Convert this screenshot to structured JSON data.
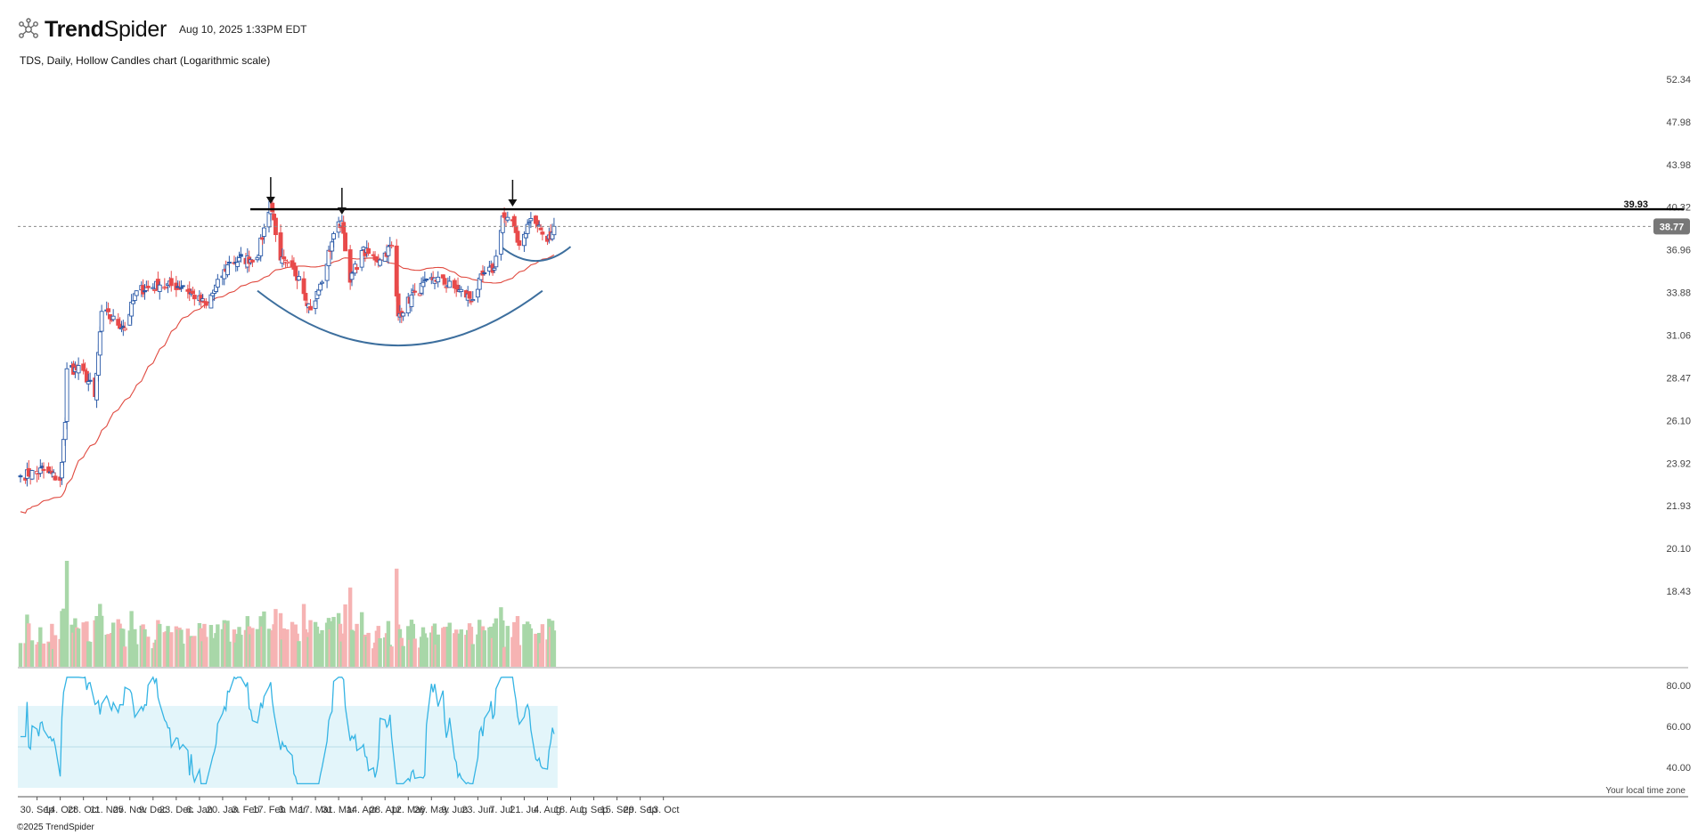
{
  "header": {
    "brand_light": "Trend",
    "brand_bold": "Spider",
    "timestamp": "Aug 10, 2025 1:33PM EDT",
    "subtitle": "TDS, Daily, Hollow Candles chart (Logarithmic scale)"
  },
  "footer": {
    "copyright": "©2025 TrendSpider",
    "timezone_note": "Your local time zone"
  },
  "colors": {
    "up": "#2b5aa8",
    "down": "#e84a4a",
    "sma": "#e0493f",
    "arc": "#3d6f9e",
    "resistance": "#000000",
    "rsi_line": "#35b4e4",
    "rsi_band": "#e3f5fa",
    "vol_up": "#a8d7a8",
    "vol_down": "#f6b3b3"
  },
  "chart_data": {
    "type": "candlestick",
    "symbol": "TDS",
    "interval": "Daily",
    "scale": "log",
    "price_axis_ticks": [
      "52.34",
      "47.98",
      "43.98",
      "40.32",
      "36.96",
      "33.88",
      "31.06",
      "28.47",
      "26.10",
      "23.92",
      "21.93",
      "20.10",
      "18.43"
    ],
    "resistance_level": "39.93",
    "last_price": "38.77",
    "x_axis_labels": [
      "30. Sep",
      "14. Oct",
      "28. Oct",
      "11. Nov",
      "25. Nov",
      "9. Dec",
      "23. Dec",
      "6. Jan",
      "20. Jan",
      "3. Feb",
      "17. Feb",
      "3. Mar",
      "17. Mar",
      "31. Mar",
      "14. Apr",
      "28. Apr",
      "12. May",
      "26. May",
      "9. Jun",
      "23. Jun",
      "7. Jul",
      "21. Jul",
      "4. Aug",
      "18. Aug",
      "1. Sep",
      "15. Sep",
      "29. Sep",
      "13. Oct"
    ],
    "close_anchors": [
      {
        "date": "2024-09-20",
        "close": 23.3
      },
      {
        "date": "2024-10-04",
        "close": 23.6
      },
      {
        "date": "2024-10-14",
        "close": 23.1
      },
      {
        "date": "2024-10-17",
        "close": 26.0
      },
      {
        "date": "2024-10-18",
        "close": 29.0
      },
      {
        "date": "2024-10-28",
        "close": 28.9
      },
      {
        "date": "2024-11-04",
        "close": 27.4
      },
      {
        "date": "2024-11-08",
        "close": 32.6
      },
      {
        "date": "2024-11-22",
        "close": 31.5
      },
      {
        "date": "2024-11-29",
        "close": 34.0
      },
      {
        "date": "2024-12-13",
        "close": 34.4
      },
      {
        "date": "2024-12-27",
        "close": 34.3
      },
      {
        "date": "2025-01-10",
        "close": 33.0
      },
      {
        "date": "2025-01-24",
        "close": 36.0
      },
      {
        "date": "2025-02-10",
        "close": 36.4
      },
      {
        "date": "2025-02-18",
        "close": 40.8
      },
      {
        "date": "2025-02-24",
        "close": 36.2
      },
      {
        "date": "2025-03-07",
        "close": 35.0
      },
      {
        "date": "2025-03-14",
        "close": 32.7
      },
      {
        "date": "2025-03-21",
        "close": 34.6
      },
      {
        "date": "2025-03-28",
        "close": 38.2
      },
      {
        "date": "2025-04-02",
        "close": 39.2
      },
      {
        "date": "2025-04-07",
        "close": 34.6
      },
      {
        "date": "2025-04-14",
        "close": 36.9
      },
      {
        "date": "2025-04-25",
        "close": 36.2
      },
      {
        "date": "2025-05-02",
        "close": 37.3
      },
      {
        "date": "2025-05-06",
        "close": 32.3
      },
      {
        "date": "2025-05-16",
        "close": 33.9
      },
      {
        "date": "2025-05-28",
        "close": 34.9
      },
      {
        "date": "2025-06-09",
        "close": 34.2
      },
      {
        "date": "2025-06-20",
        "close": 33.4
      },
      {
        "date": "2025-06-26",
        "close": 35.1
      },
      {
        "date": "2025-07-03",
        "close": 35.6
      },
      {
        "date": "2025-07-08",
        "close": 39.6
      },
      {
        "date": "2025-07-15",
        "close": 38.8
      },
      {
        "date": "2025-07-18",
        "close": 37.3
      },
      {
        "date": "2025-07-25",
        "close": 39.4
      },
      {
        "date": "2025-07-31",
        "close": 38.5
      },
      {
        "date": "2025-08-04",
        "close": 37.6
      },
      {
        "date": "2025-08-08",
        "close": 38.77
      }
    ],
    "arrows_at": [
      "2025-02-18",
      "2025-04-02",
      "2025-07-14"
    ],
    "rsi_axis_ticks": [
      "80.00",
      "60.00",
      "40.00"
    ],
    "rsi_band": [
      30,
      70
    ],
    "legend": "none",
    "grid": false
  }
}
